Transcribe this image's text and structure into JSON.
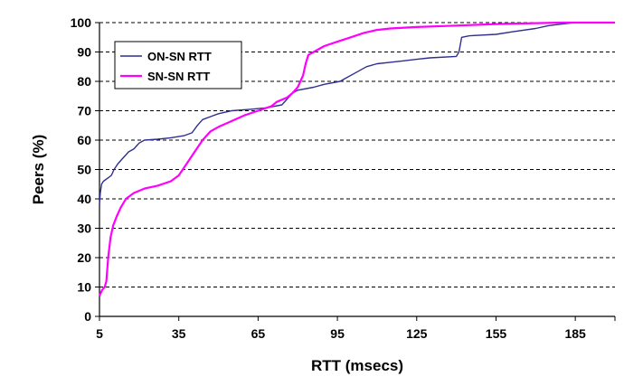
{
  "chart_data": {
    "type": "line",
    "title": "",
    "xlabel": "RTT (msecs)",
    "ylabel": "Peers (%)",
    "xlim": [
      5,
      200
    ],
    "ylim": [
      0,
      100
    ],
    "x_ticks": [
      5,
      35,
      65,
      95,
      125,
      155,
      185
    ],
    "y_ticks": [
      0,
      10,
      20,
      30,
      40,
      50,
      60,
      70,
      80,
      90,
      100
    ],
    "grid": "horizontal-dashed",
    "legend_position": "top-left",
    "series": [
      {
        "name": "ON-SN RTT",
        "color": "#2f2f8f",
        "points": [
          [
            5,
            38
          ],
          [
            5.3,
            42
          ],
          [
            5.8,
            45
          ],
          [
            6.5,
            46
          ],
          [
            8,
            47
          ],
          [
            9.5,
            48
          ],
          [
            10.5,
            50
          ],
          [
            12,
            52
          ],
          [
            14,
            54
          ],
          [
            16,
            56
          ],
          [
            18,
            57
          ],
          [
            19,
            58
          ],
          [
            20,
            59
          ],
          [
            22,
            60
          ],
          [
            27,
            60.3
          ],
          [
            32,
            60.8
          ],
          [
            37,
            61.5
          ],
          [
            40,
            62.5
          ],
          [
            42,
            65
          ],
          [
            44,
            67
          ],
          [
            47,
            68
          ],
          [
            50,
            69
          ],
          [
            55,
            70
          ],
          [
            62,
            70.5
          ],
          [
            68,
            71
          ],
          [
            74,
            72
          ],
          [
            76,
            74
          ],
          [
            78,
            76
          ],
          [
            80,
            77
          ],
          [
            86,
            78
          ],
          [
            90,
            79
          ],
          [
            96,
            80
          ],
          [
            98,
            81
          ],
          [
            102,
            83
          ],
          [
            106,
            85
          ],
          [
            110,
            86
          ],
          [
            115,
            86.5
          ],
          [
            120,
            87
          ],
          [
            125,
            87.5
          ],
          [
            130,
            88
          ],
          [
            140,
            88.5
          ],
          [
            141,
            90
          ],
          [
            142,
            95
          ],
          [
            145,
            95.5
          ],
          [
            155,
            96
          ],
          [
            162,
            97
          ],
          [
            170,
            98
          ],
          [
            175,
            99
          ],
          [
            180,
            99.5
          ],
          [
            185,
            100
          ],
          [
            200,
            100
          ]
        ]
      },
      {
        "name": "SN-SN RTT",
        "color": "#ff00ff",
        "points": [
          [
            5,
            7
          ],
          [
            6,
            9
          ],
          [
            7,
            10
          ],
          [
            7.6,
            12
          ],
          [
            8.3,
            20
          ],
          [
            9.2,
            27
          ],
          [
            10.2,
            31
          ],
          [
            11.5,
            34
          ],
          [
            13,
            37
          ],
          [
            15,
            40
          ],
          [
            18,
            42
          ],
          [
            22,
            43.5
          ],
          [
            27,
            44.5
          ],
          [
            32,
            46
          ],
          [
            35,
            48
          ],
          [
            38,
            52
          ],
          [
            41,
            56
          ],
          [
            44,
            60
          ],
          [
            47,
            63
          ],
          [
            50,
            64.5
          ],
          [
            55,
            66.5
          ],
          [
            60,
            68.5
          ],
          [
            65,
            70
          ],
          [
            70,
            71.5
          ],
          [
            72,
            73
          ],
          [
            76,
            74.5
          ],
          [
            78,
            76
          ],
          [
            80,
            78
          ],
          [
            81,
            80
          ],
          [
            82,
            82
          ],
          [
            83,
            86
          ],
          [
            84,
            89
          ],
          [
            86,
            90
          ],
          [
            90,
            92
          ],
          [
            95,
            93.5
          ],
          [
            100,
            95
          ],
          [
            105,
            96.5
          ],
          [
            110,
            97.5
          ],
          [
            115,
            98
          ],
          [
            125,
            98.5
          ],
          [
            140,
            99
          ],
          [
            155,
            99.5
          ],
          [
            170,
            99.8
          ],
          [
            180,
            100
          ],
          [
            200,
            100
          ]
        ]
      }
    ]
  }
}
